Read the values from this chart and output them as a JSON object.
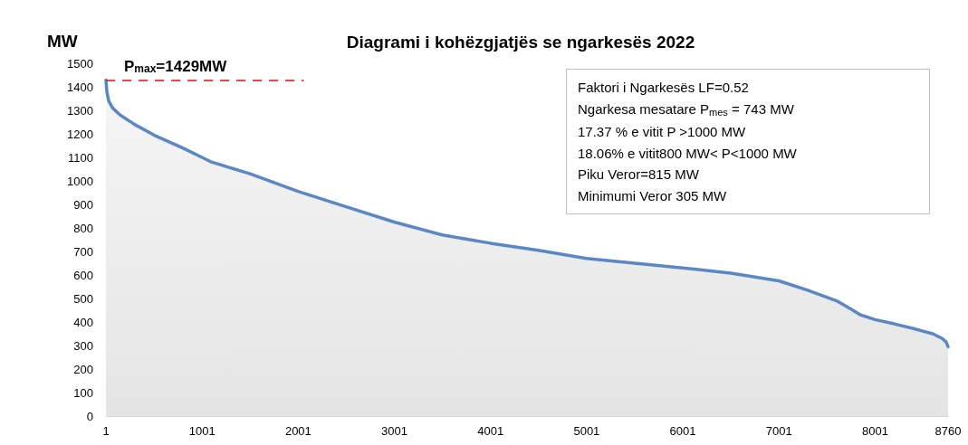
{
  "chart_data": {
    "type": "area",
    "title": "Diagrami i kohëzgjatjës se ngarkesës 2022",
    "ylabel": "MW",
    "series": [
      {
        "color": "#5b87c5",
        "x": [
          1,
          10,
          30,
          70,
          150,
          300,
          500,
          800,
          1000,
          1100,
          1500,
          2000,
          2500,
          3000,
          3500,
          4000,
          4500,
          5000,
          5500,
          6000,
          6500,
          7000,
          7300,
          7600,
          7750,
          7850,
          8000,
          8200,
          8400,
          8600,
          8700,
          8740,
          8760
        ],
        "values": [
          1429,
          1380,
          1340,
          1310,
          1280,
          1240,
          1195,
          1140,
          1100,
          1080,
          1030,
          955,
          890,
          825,
          770,
          735,
          705,
          670,
          650,
          630,
          608,
          575,
          535,
          490,
          455,
          430,
          410,
          392,
          372,
          350,
          330,
          315,
          295
        ]
      }
    ],
    "xlim": [
      1,
      8760
    ],
    "xticks": [
      1,
      1001,
      2001,
      3001,
      4001,
      5001,
      6001,
      7001,
      8001,
      8760
    ],
    "ylim": [
      0,
      1500
    ],
    "yticks": [
      0,
      100,
      200,
      300,
      400,
      500,
      600,
      700,
      800,
      900,
      1000,
      1100,
      1200,
      1300,
      1400,
      1500
    ],
    "grid": false,
    "marker": "none",
    "line_style": "solid",
    "ref_lines": [
      {
        "axis": "y",
        "value": 1429,
        "label": "P$_{max}$=1429MW",
        "color": "#ff0000",
        "line_style": "dashed"
      }
    ],
    "annotations": [
      "Faktori i Ngarkesës LF=0.52",
      "Ngarkesa mesatare P$_{mes}$ = 743 MW",
      "17.37 % e vitit P >1000 MW",
      "18.06% e vitit800 MW< P<1000 MW",
      "Piku Veror=815 MW",
      "Minimumi Veror 305 MW"
    ]
  }
}
